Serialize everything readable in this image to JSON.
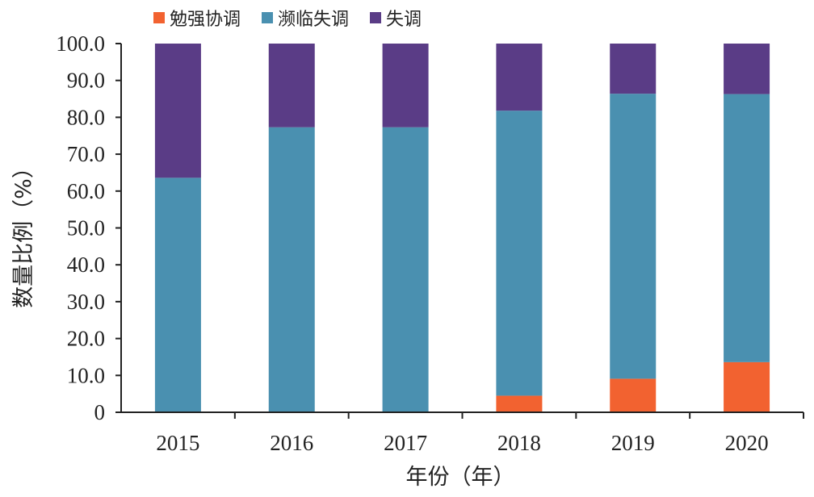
{
  "chart_data": {
    "type": "bar",
    "stacked": true,
    "categories": [
      "2015",
      "2016",
      "2017",
      "2018",
      "2019",
      "2020"
    ],
    "series": [
      {
        "name": "勉强协调",
        "color": "#f26230",
        "values": [
          0,
          0,
          0,
          4.5,
          9.1,
          13.6
        ]
      },
      {
        "name": "濒临失调",
        "color": "#4a90b0",
        "values": [
          63.6,
          77.3,
          77.3,
          77.3,
          77.3,
          72.7
        ]
      },
      {
        "name": "失调",
        "color": "#5a3c86",
        "values": [
          36.4,
          22.7,
          22.7,
          18.2,
          13.6,
          13.7
        ]
      }
    ],
    "xlabel": "年份（年）",
    "ylabel": "数量比例（%）",
    "ylim": [
      0,
      100
    ],
    "yticks": [
      "0",
      "10.0",
      "20.0",
      "30.0",
      "40.0",
      "50.0",
      "60.0",
      "70.0",
      "80.0",
      "90.0",
      "100.0"
    ],
    "legend_position": "top"
  }
}
